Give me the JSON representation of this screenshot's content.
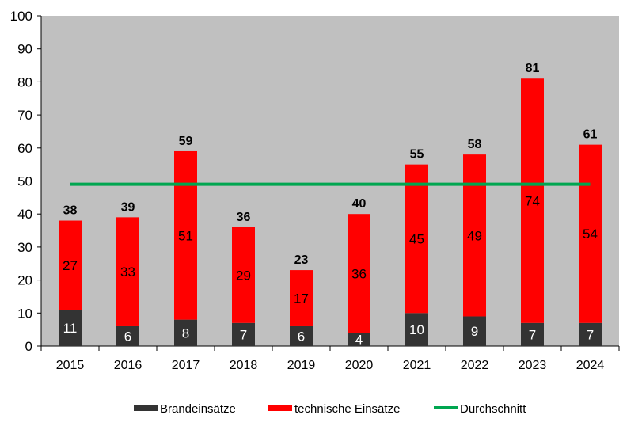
{
  "chart_data": {
    "type": "bar",
    "stacked": true,
    "categories": [
      "2015",
      "2016",
      "2017",
      "2018",
      "2019",
      "2020",
      "2021",
      "2022",
      "2023",
      "2024"
    ],
    "series": [
      {
        "name": "Brandeinsätze",
        "values": [
          11,
          6,
          8,
          7,
          6,
          4,
          10,
          9,
          7,
          7
        ],
        "color": "#333333"
      },
      {
        "name": "technische Einsätze",
        "values": [
          27,
          33,
          51,
          29,
          17,
          36,
          45,
          49,
          74,
          54
        ],
        "color": "#ff0000"
      }
    ],
    "totals": [
      38,
      39,
      59,
      36,
      23,
      40,
      55,
      58,
      81,
      61
    ],
    "average": {
      "name": "Durchschnitt",
      "value": 49,
      "color": "#00a650"
    },
    "ylim": [
      0,
      100
    ],
    "yticks": [
      0,
      10,
      20,
      30,
      40,
      50,
      60,
      70,
      80,
      90,
      100
    ],
    "grid": false,
    "plot_background": "#c0c0c0",
    "legend_position": "bottom"
  }
}
